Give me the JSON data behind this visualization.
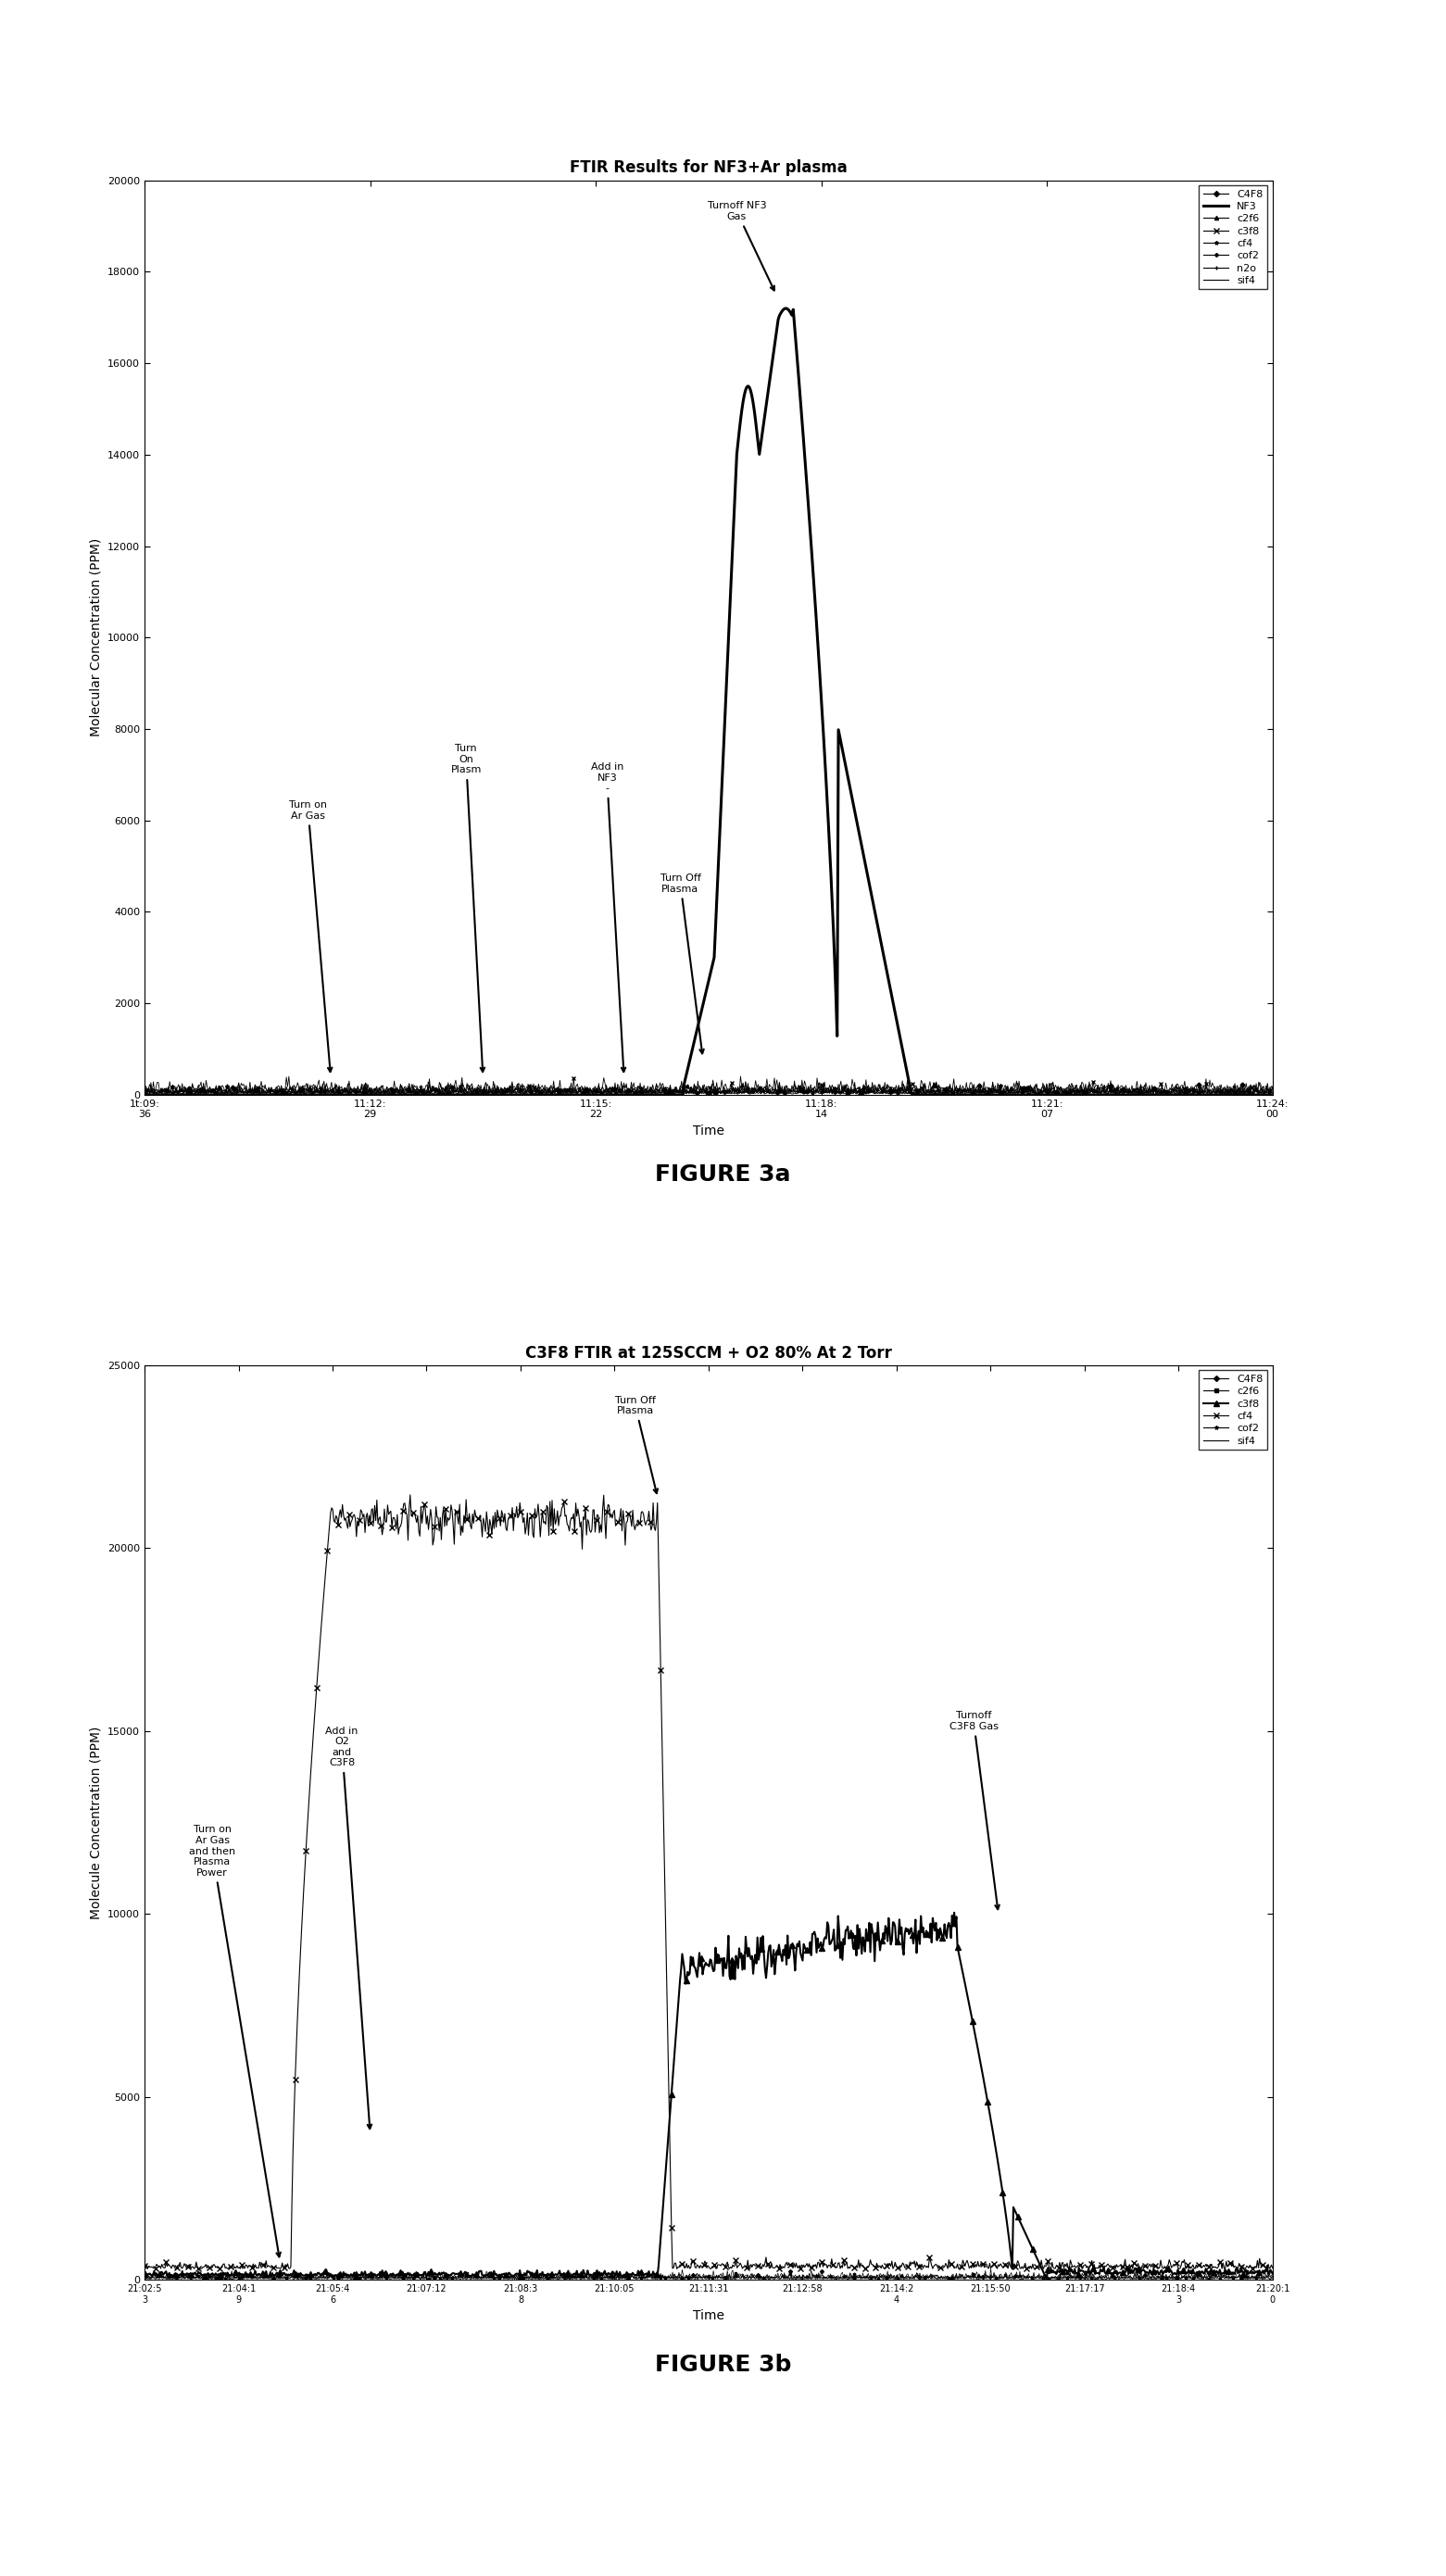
{
  "fig3a": {
    "title": "FTIR Results for NF3+Ar plasma",
    "xlabel": "Time",
    "ylabel": "Molecular Concentration (PPM)",
    "ylim": [
      0,
      20000
    ],
    "yticks": [
      0,
      2000,
      4000,
      6000,
      8000,
      10000,
      12000,
      14000,
      16000,
      18000,
      20000
    ],
    "xtick_labels": [
      "1t:09:36",
      "11:12:29",
      "11:15:22",
      "11:18:14",
      "11:21:07",
      "11:24:00"
    ],
    "xtick_display": [
      "1t:09:\n36",
      "11:12:29",
      "11:15:22",
      "11:18:14",
      "11:21:07",
      "11:24:00"
    ],
    "legend_entries": [
      "C4F8",
      "NF3",
      "c2f6",
      "c3f8",
      "cf4",
      "cof2",
      "n2o",
      "sif4"
    ]
  },
  "fig3b": {
    "title": "C3F8 FTIR at 125SCCM + O2 80% At 2 Torr",
    "xlabel": "Time",
    "ylabel": "Molecule Concentration (PPM)",
    "ylim": [
      0,
      25000
    ],
    "yticks": [
      0,
      5000,
      10000,
      15000,
      20000,
      25000
    ],
    "xtick_labels": [
      "21:02:5\n3",
      "21:04:1\n9",
      "21:05:4\n6",
      "21:07:12",
      "21:08:3\n8",
      "21:10:05",
      "21:11:31",
      "21:12:58",
      "21:14:2\n4",
      "21:15:50",
      "21:17:17",
      "21:18:4\n3",
      "21:20:1\n0"
    ],
    "legend_entries": [
      "C4F8",
      "c2f6",
      "c3f8",
      "cf4",
      "cof2",
      "sif4"
    ]
  },
  "background_color": "#ffffff",
  "figure_label_fontsize": 18,
  "title_fontsize": 12,
  "tick_fontsize": 8,
  "label_fontsize": 10
}
